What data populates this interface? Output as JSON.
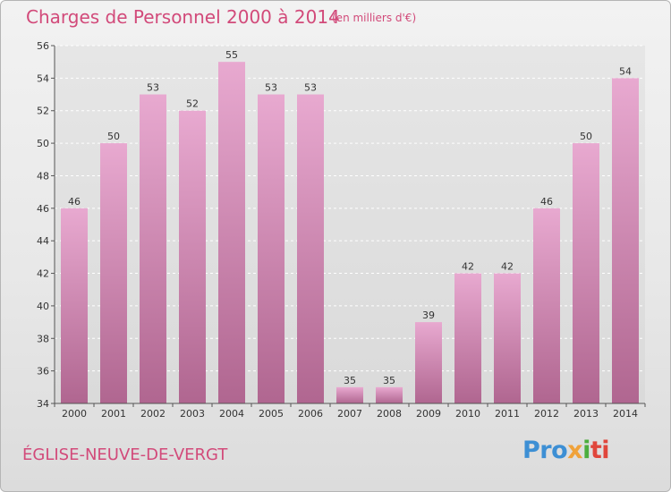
{
  "title": "Charges de Personnel 2000 à 2014",
  "subtitle": "(en milliers d'€)",
  "place": "ÉGLISE-NEUVE-DE-VERGT",
  "logo": [
    "Pro",
    "x",
    "i",
    "ti"
  ],
  "colors": {
    "accent": "#d24a7a",
    "bar_top": "#e8a9d0",
    "bar_bottom": "#b06690"
  },
  "chart_data": {
    "type": "bar",
    "title": "Charges de Personnel 2000 à 2014",
    "subtitle": "(en milliers d'€)",
    "categories": [
      "2000",
      "2001",
      "2002",
      "2003",
      "2004",
      "2005",
      "2006",
      "2007",
      "2008",
      "2009",
      "2010",
      "2011",
      "2012",
      "2013",
      "2014"
    ],
    "values": [
      46,
      50,
      53,
      52,
      55,
      53,
      53,
      35,
      35,
      39,
      42,
      42,
      46,
      50,
      54
    ],
    "ylim": [
      34,
      56
    ],
    "yticks": [
      34,
      36,
      38,
      40,
      42,
      44,
      46,
      48,
      50,
      52,
      54,
      56
    ],
    "grid": true,
    "xlabel": "",
    "ylabel": ""
  }
}
